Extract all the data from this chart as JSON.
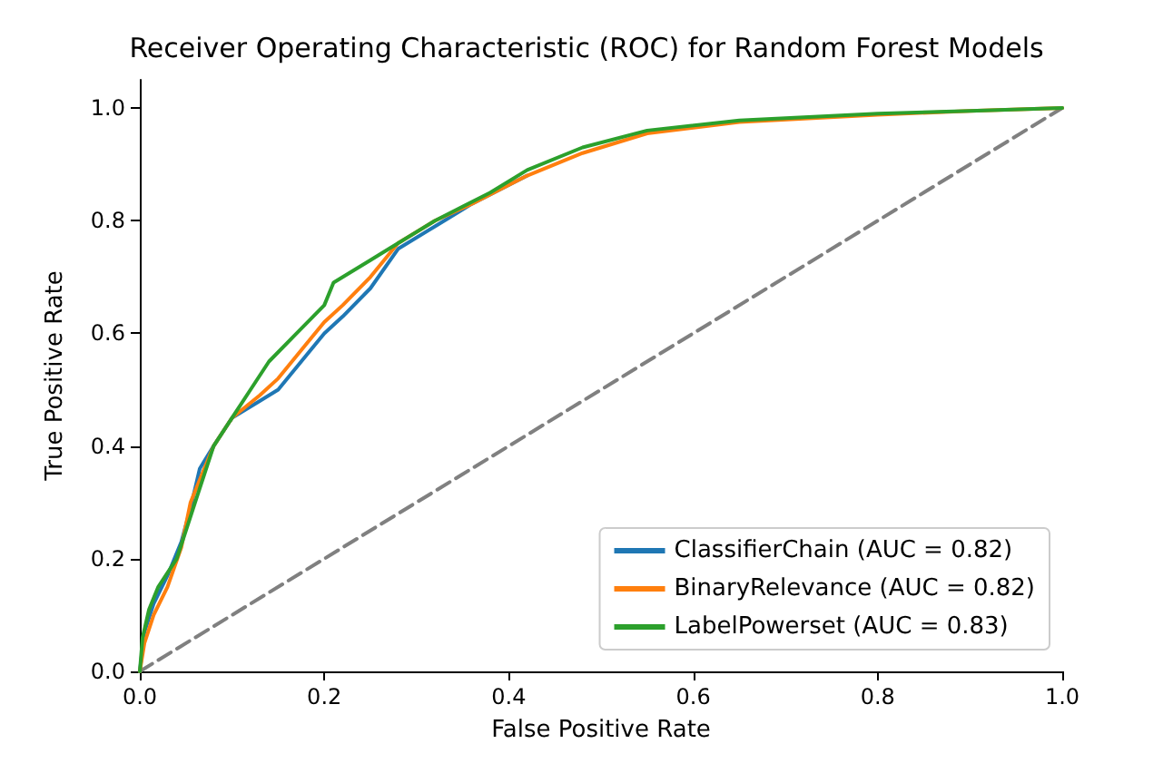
{
  "chart_data": {
    "type": "line",
    "title": "Receiver Operating Characteristic (ROC) for Random Forest Models",
    "xlabel": "False Positive Rate",
    "ylabel": "True Positive Rate",
    "xlim": [
      0,
      1
    ],
    "ylim": [
      0,
      1.05
    ],
    "xticks": [
      {
        "value": 0,
        "label": "0.0"
      },
      {
        "value": 0.2,
        "label": "0.2"
      },
      {
        "value": 0.4,
        "label": "0.4"
      },
      {
        "value": 0.6,
        "label": "0.6"
      },
      {
        "value": 0.8,
        "label": "0.8"
      },
      {
        "value": 1,
        "label": "1.0"
      }
    ],
    "yticks": [
      {
        "value": 0,
        "label": "0.0"
      },
      {
        "value": 0.2,
        "label": "0.2"
      },
      {
        "value": 0.4,
        "label": "0.4"
      },
      {
        "value": 0.6,
        "label": "0.6"
      },
      {
        "value": 0.8,
        "label": "0.8"
      },
      {
        "value": 1,
        "label": "1.0"
      }
    ],
    "grid": false,
    "legend": "bottom right",
    "marker": "none",
    "series": [
      {
        "name": "ClassifierChain (AUC = 0.82)",
        "color": "#1f77b4",
        "x": [
          0,
          0.005,
          0.015,
          0.03,
          0.045,
          0.055,
          0.065,
          0.08,
          0.1,
          0.13,
          0.15,
          0.18,
          0.2,
          0.22,
          0.25,
          0.28,
          0.32,
          0.36,
          0.42
        ],
        "values": [
          0,
          0.07,
          0.12,
          0.17,
          0.23,
          0.29,
          0.36,
          0.4,
          0.45,
          0.48,
          0.5,
          0.56,
          0.6,
          0.63,
          0.68,
          0.75,
          0.79,
          0.83,
          0.88
        ]
      },
      {
        "name": "BinaryRelevance (AUC = 0.82)",
        "color": "#ff7f0e",
        "x": [
          0,
          0.005,
          0.015,
          0.03,
          0.045,
          0.055,
          0.065,
          0.08,
          0.1,
          0.13,
          0.15,
          0.18,
          0.2,
          0.22,
          0.25,
          0.28,
          0.32,
          0.36,
          0.42,
          0.48,
          0.55,
          0.65,
          0.8,
          0.9,
          1
        ],
        "values": [
          0,
          0.05,
          0.1,
          0.15,
          0.22,
          0.3,
          0.34,
          0.4,
          0.45,
          0.49,
          0.52,
          0.58,
          0.62,
          0.65,
          0.7,
          0.76,
          0.8,
          0.83,
          0.88,
          0.92,
          0.955,
          0.975,
          0.988,
          0.995,
          1
        ]
      },
      {
        "name": "LabelPowerset (AUC = 0.83)",
        "color": "#2ca02c",
        "x": [
          0,
          0.003,
          0.01,
          0.02,
          0.04,
          0.05,
          0.06,
          0.07,
          0.08,
          0.1,
          0.12,
          0.14,
          0.17,
          0.2,
          0.21,
          0.25,
          0.27,
          0.32,
          0.38,
          0.42,
          0.48,
          0.55,
          0.65,
          0.8,
          0.9,
          1
        ],
        "values": [
          0,
          0.06,
          0.11,
          0.15,
          0.2,
          0.25,
          0.3,
          0.35,
          0.4,
          0.45,
          0.5,
          0.55,
          0.6,
          0.65,
          0.69,
          0.73,
          0.75,
          0.8,
          0.85,
          0.89,
          0.93,
          0.96,
          0.978,
          0.99,
          0.995,
          1
        ]
      },
      {
        "color": "#808080",
        "line_style": "dashed",
        "x": [
          0,
          1
        ],
        "values": [
          0,
          1
        ]
      }
    ]
  }
}
